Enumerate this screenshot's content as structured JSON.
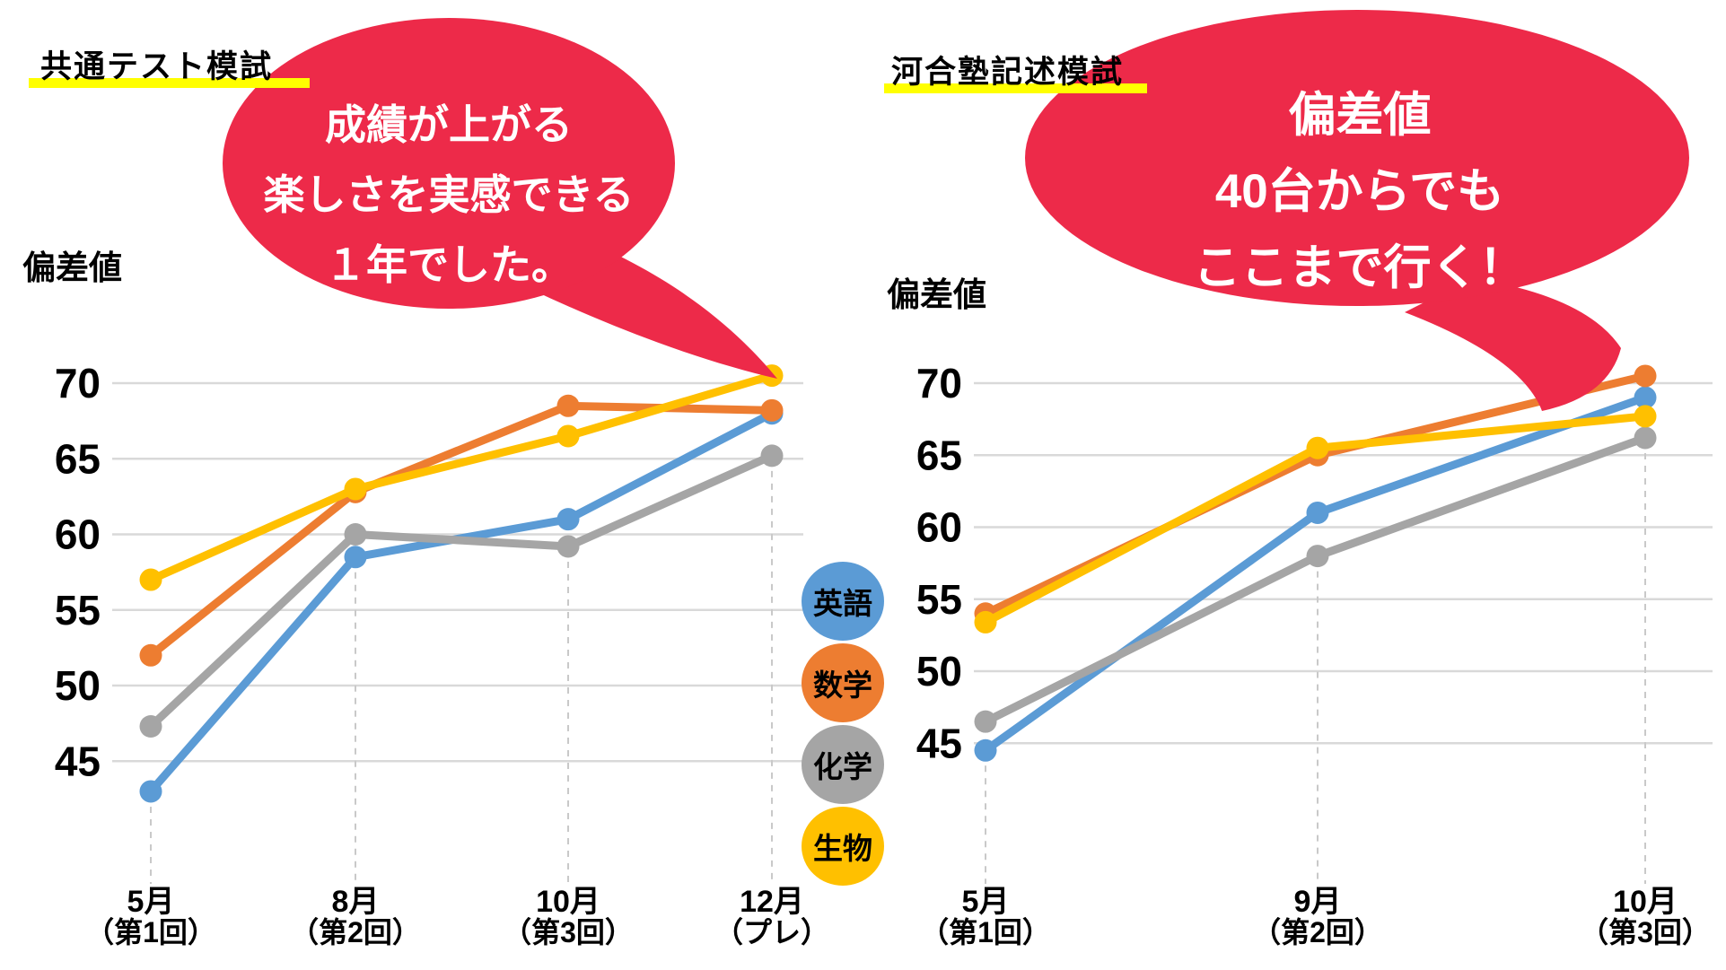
{
  "styles": {
    "background": "#FFFFFF",
    "text": "#000000",
    "title_underline": "#FFFF00",
    "gridline": "#D9D9D9",
    "dashed_line": "#C9C9C9",
    "bubble_red": "#ED2A49",
    "bubble_text": "#FFFFFF"
  },
  "legend": {
    "items": [
      {
        "label": "英語",
        "color": "#5B9BD5"
      },
      {
        "label": "数学",
        "color": "#ED7D31"
      },
      {
        "label": "化学",
        "color": "#A5A5A5"
      },
      {
        "label": "生物",
        "color": "#FFC000"
      }
    ]
  },
  "bubbles": [
    {
      "lines": [
        "成績が上がる",
        "楽しさを実感できる",
        "１年でした。"
      ],
      "color": "#ED2A49",
      "text_color": "#FFFFFF"
    },
    {
      "lines": [
        "偏差値",
        "40台からでも",
        "ここまで行く！"
      ],
      "color": "#ED2A49",
      "text_color": "#FFFFFF"
    }
  ],
  "chart_data": [
    {
      "type": "line",
      "title": "共通テスト模試",
      "ylabel": "偏差値",
      "xlabel": "",
      "categories": [
        "5月（第1回）",
        "8月（第2回）",
        "10月（第3回）",
        "12月（プレ）"
      ],
      "categories_lines": [
        [
          "5月",
          "（第1回）"
        ],
        [
          "8月",
          "（第2回）"
        ],
        [
          "10月",
          "（第3回）"
        ],
        [
          "12月",
          "（プレ）"
        ]
      ],
      "yticks": [
        45,
        50,
        55,
        60,
        65,
        70
      ],
      "ylim": [
        41.5,
        73
      ],
      "grid": true,
      "legend_entries": [
        "英語",
        "数学",
        "化学",
        "生物"
      ],
      "series": [
        {
          "name": "英語",
          "color": "#5B9BD5",
          "values": [
            43,
            58.5,
            61,
            68
          ]
        },
        {
          "name": "化学",
          "color": "#A5A5A5",
          "values": [
            47.3,
            60,
            59.2,
            65.2
          ]
        },
        {
          "name": "数学",
          "color": "#ED7D31",
          "values": [
            52,
            62.8,
            68.5,
            68.2
          ]
        },
        {
          "name": "生物",
          "color": "#FFC000",
          "values": [
            57,
            63,
            66.5,
            70.5
          ]
        }
      ],
      "annotation": "成績が上がる 楽しさを実感できる １年でした。"
    },
    {
      "type": "line",
      "title": "河合塾記述模試",
      "ylabel": "偏差値",
      "xlabel": "",
      "categories": [
        "5月（第1回）",
        "9月（第2回）",
        "10月（第3回）"
      ],
      "categories_lines": [
        [
          "5月",
          "（第1回）"
        ],
        [
          "9月",
          "（第2回）"
        ],
        [
          "10月",
          "（第3回）"
        ]
      ],
      "yticks": [
        45,
        50,
        55,
        60,
        65,
        70
      ],
      "ylim": [
        41.5,
        73
      ],
      "grid": true,
      "legend_entries": [
        "英語",
        "数学",
        "化学",
        "生物"
      ],
      "series": [
        {
          "name": "英語",
          "color": "#5B9BD5",
          "values": [
            44.5,
            61,
            69
          ]
        },
        {
          "name": "化学",
          "color": "#A5A5A5",
          "values": [
            46.5,
            58,
            66.2
          ]
        },
        {
          "name": "数学",
          "color": "#ED7D31",
          "values": [
            54,
            65,
            70.5
          ]
        },
        {
          "name": "生物",
          "color": "#FFC000",
          "values": [
            53.4,
            65.5,
            67.7
          ]
        }
      ],
      "annotation": "偏差値 40台からでも ここまで行く！"
    }
  ]
}
